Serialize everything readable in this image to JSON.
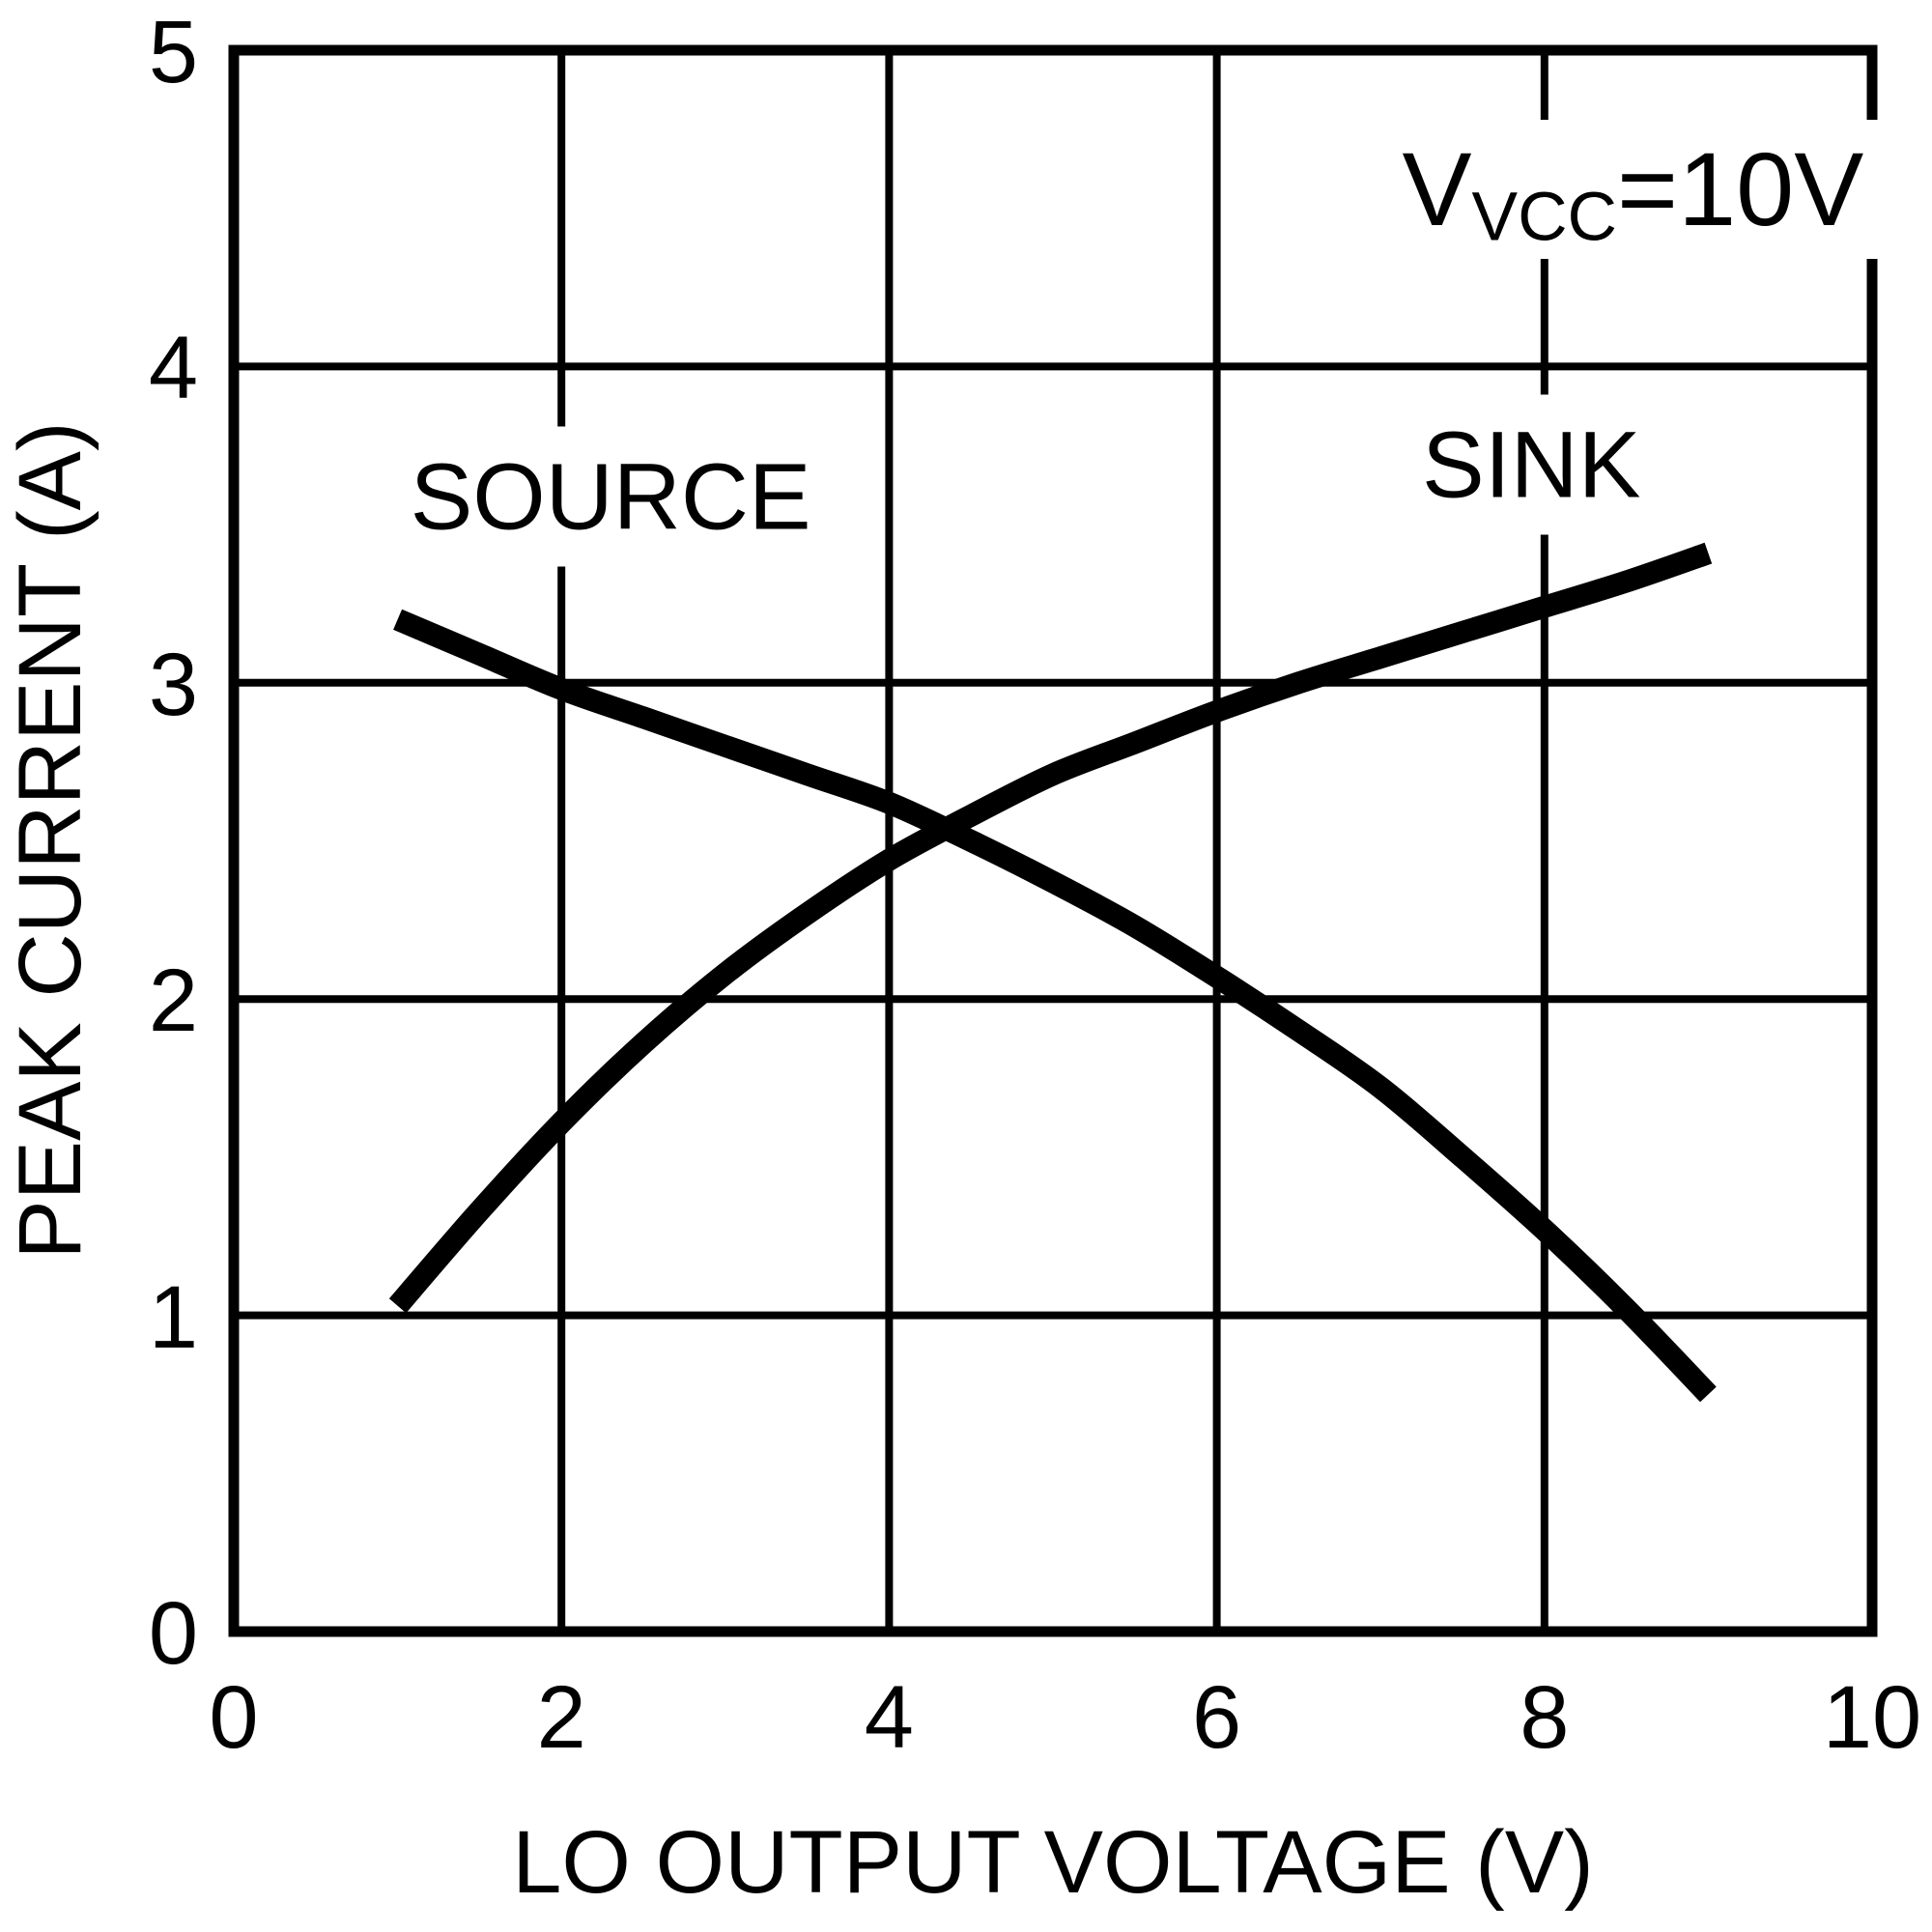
{
  "figure": {
    "background": "#ffffff",
    "ink": "#000000"
  },
  "chart_data": {
    "type": "line",
    "title": "",
    "xlabel": "LO OUTPUT VOLTAGE (V)",
    "ylabel": "PEAK CURRENT (A)",
    "xlim": [
      0,
      10
    ],
    "ylim": [
      0,
      5
    ],
    "x_ticks": [
      0,
      2,
      4,
      6,
      8,
      10
    ],
    "y_ticks": [
      0,
      1,
      2,
      3,
      4,
      5
    ],
    "grid": "on",
    "legend": "none",
    "annotation": {
      "pre": "V",
      "sub": "VCC",
      "post": "=10V",
      "x": 8.54,
      "y": 4.56
    },
    "series": [
      {
        "name": "SOURCE",
        "label_x": 2.3,
        "label_y": 3.59,
        "points": [
          [
            1.0,
            3.2
          ],
          [
            1.5,
            3.09
          ],
          [
            2.0,
            2.98
          ],
          [
            2.5,
            2.89
          ],
          [
            3.0,
            2.8
          ],
          [
            3.5,
            2.71
          ],
          [
            4.0,
            2.62
          ],
          [
            4.5,
            2.5
          ],
          [
            5.0,
            2.37
          ],
          [
            5.5,
            2.23
          ],
          [
            6.0,
            2.07
          ],
          [
            6.5,
            1.9
          ],
          [
            7.0,
            1.72
          ],
          [
            7.5,
            1.5
          ],
          [
            8.0,
            1.27
          ],
          [
            8.5,
            1.02
          ],
          [
            9.0,
            0.75
          ]
        ]
      },
      {
        "name": "SINK",
        "label_x": 7.92,
        "label_y": 3.69,
        "points": [
          [
            1.0,
            1.03
          ],
          [
            1.5,
            1.33
          ],
          [
            2.0,
            1.61
          ],
          [
            2.5,
            1.86
          ],
          [
            3.0,
            2.08
          ],
          [
            3.5,
            2.27
          ],
          [
            4.0,
            2.44
          ],
          [
            4.5,
            2.58
          ],
          [
            5.0,
            2.71
          ],
          [
            5.5,
            2.81
          ],
          [
            6.0,
            2.91
          ],
          [
            6.5,
            3.0
          ],
          [
            7.0,
            3.08
          ],
          [
            7.5,
            3.16
          ],
          [
            8.0,
            3.24
          ],
          [
            8.5,
            3.32
          ],
          [
            9.0,
            3.41
          ]
        ]
      }
    ]
  }
}
